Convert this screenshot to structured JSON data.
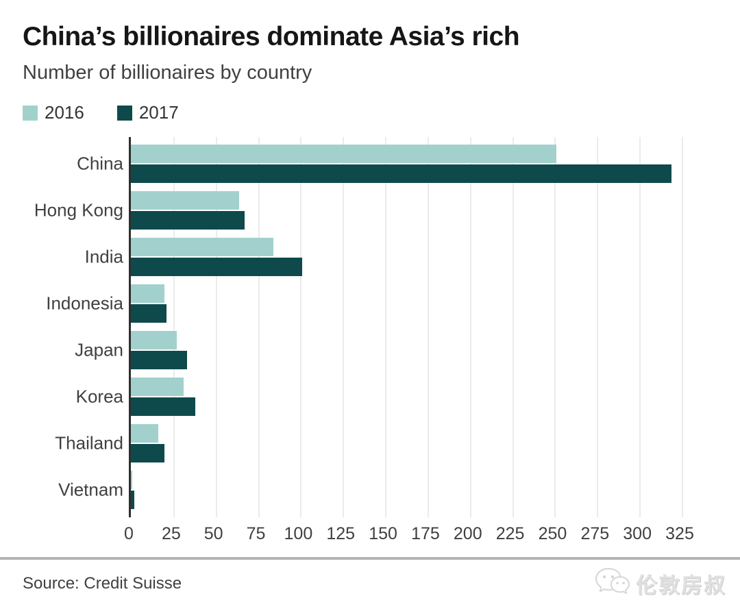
{
  "header": {
    "title": "China’s billionaires dominate Asia’s rich",
    "subtitle": "Number of billionaires by country"
  },
  "legend": {
    "items": [
      {
        "label": "2016",
        "color": "#a2d1cd"
      },
      {
        "label": "2017",
        "color": "#0e4a4c"
      }
    ]
  },
  "chart_data": {
    "type": "bar",
    "orientation": "horizontal",
    "title": "China’s billionaires dominate Asia’s rich",
    "subtitle": "Number of billionaires by country",
    "categories": [
      "China",
      "Hong Kong",
      "India",
      "Indonesia",
      "Japan",
      "Korea",
      "Thailand",
      "Vietnam"
    ],
    "series": [
      {
        "name": "2016",
        "color": "#a2d1cd",
        "values": [
          251,
          64,
          84,
          20,
          27,
          31,
          16,
          1
        ]
      },
      {
        "name": "2017",
        "color": "#0e4a4c",
        "values": [
          319,
          67,
          101,
          21,
          33,
          38,
          20,
          2
        ]
      }
    ],
    "xlabel": "",
    "ylabel": "",
    "xlim": [
      0,
      325
    ],
    "x_ticks": [
      0,
      25,
      50,
      75,
      100,
      125,
      150,
      175,
      200,
      225,
      250,
      275,
      300,
      325
    ],
    "grid": true,
    "legend_position": "top-left"
  },
  "footer": {
    "source": "Source: Credit Suisse",
    "watermark_text": "伦敦房叔"
  }
}
